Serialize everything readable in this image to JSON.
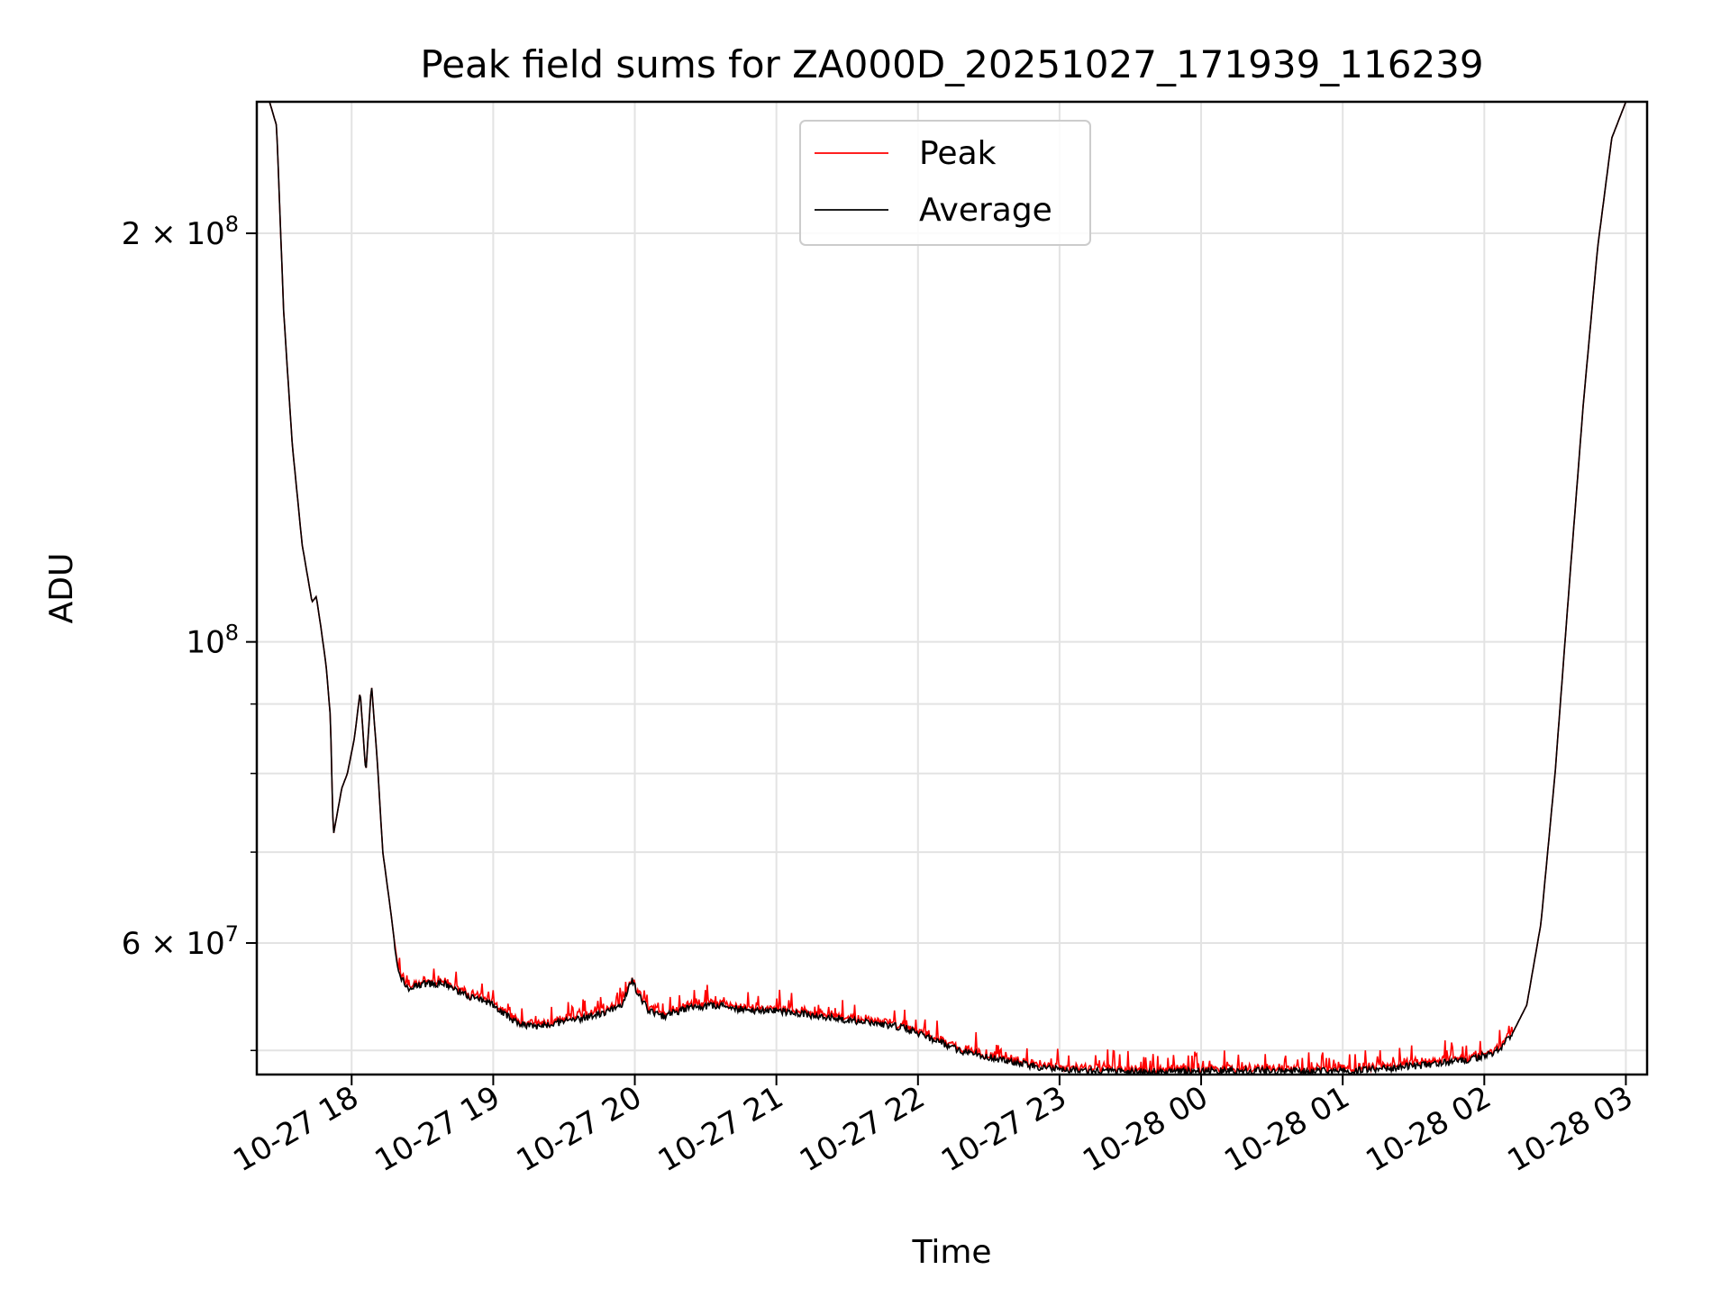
{
  "chart_data": {
    "type": "line",
    "title": "Peak field sums for ZA000D_20251027_171939_116239",
    "xlabel": "Time",
    "ylabel": "ADU",
    "yscale": "log",
    "ylim": [
      48000000,
      250000000
    ],
    "xlim_hours": [
      17.33,
      27.15
    ],
    "grid": true,
    "legend_position": "top-center",
    "x_ticks": [
      {
        "value": 18,
        "label": "10-27 18"
      },
      {
        "value": 19,
        "label": "10-27 19"
      },
      {
        "value": 20,
        "label": "10-27 20"
      },
      {
        "value": 21,
        "label": "10-27 21"
      },
      {
        "value": 22,
        "label": "10-27 22"
      },
      {
        "value": 23,
        "label": "10-27 23"
      },
      {
        "value": 24,
        "label": "10-28 00"
      },
      {
        "value": 25,
        "label": "10-28 01"
      },
      {
        "value": 26,
        "label": "10-28 02"
      },
      {
        "value": 27,
        "label": "10-28 03"
      }
    ],
    "y_ticks_major": [
      {
        "value": 100000000,
        "base": "10",
        "exp": "8",
        "mant": ""
      },
      {
        "value": 200000000,
        "base": "10",
        "exp": "8",
        "mant": "2 × "
      },
      {
        "value": 60000000,
        "base": "10",
        "exp": "7",
        "mant": "6 × "
      }
    ],
    "y_grid_minor": [
      50000000,
      70000000,
      80000000,
      90000000
    ],
    "series": [
      {
        "name": "Peak",
        "color": "#ff0000"
      },
      {
        "name": "Average",
        "color": "#000000"
      }
    ],
    "average_curve": {
      "x": [
        17.33,
        17.42,
        17.47,
        17.52,
        17.58,
        17.65,
        17.72,
        17.75,
        17.78,
        17.82,
        17.85,
        17.87,
        17.93,
        17.97,
        18.02,
        18.06,
        18.1,
        18.14,
        18.18,
        18.22,
        18.27,
        18.33,
        18.4,
        18.5,
        18.65,
        18.8,
        19.0,
        19.15,
        19.3,
        19.5,
        19.7,
        19.9,
        19.98,
        20.02,
        20.1,
        20.2,
        20.4,
        20.6,
        20.8,
        21.0,
        21.3,
        21.6,
        21.9,
        22.1,
        22.3,
        22.6,
        22.9,
        23.2,
        23.6,
        24.0,
        24.4,
        24.8,
        25.2,
        25.6,
        25.9,
        26.1,
        26.2,
        26.3,
        26.4,
        26.5,
        26.6,
        26.7,
        26.8,
        26.9,
        27.0,
        27.15
      ],
      "y": [
        250000000,
        250000000,
        240000000,
        175000000,
        140000000,
        118000000,
        107000000,
        108000000,
        103000000,
        96000000,
        88000000,
        72000000,
        78000000,
        80000000,
        85000000,
        92000000,
        80000000,
        93000000,
        82000000,
        70000000,
        64000000,
        57000000,
        55500000,
        56000000,
        56000000,
        55000000,
        54000000,
        52500000,
        52000000,
        52500000,
        53000000,
        53800000,
        56500000,
        55000000,
        53500000,
        53000000,
        53800000,
        54000000,
        53500000,
        53500000,
        53000000,
        52500000,
        52000000,
        51000000,
        50000000,
        49200000,
        48500000,
        48300000,
        48200000,
        48300000,
        48300000,
        48300000,
        48400000,
        48800000,
        49200000,
        50000000,
        51500000,
        54000000,
        62000000,
        80000000,
        110000000,
        150000000,
        195000000,
        235000000,
        250000000,
        250000000
      ]
    }
  },
  "legend": {
    "items": [
      {
        "label": "Peak",
        "color": "#ff0000"
      },
      {
        "label": "Average",
        "color": "#000000"
      }
    ]
  }
}
